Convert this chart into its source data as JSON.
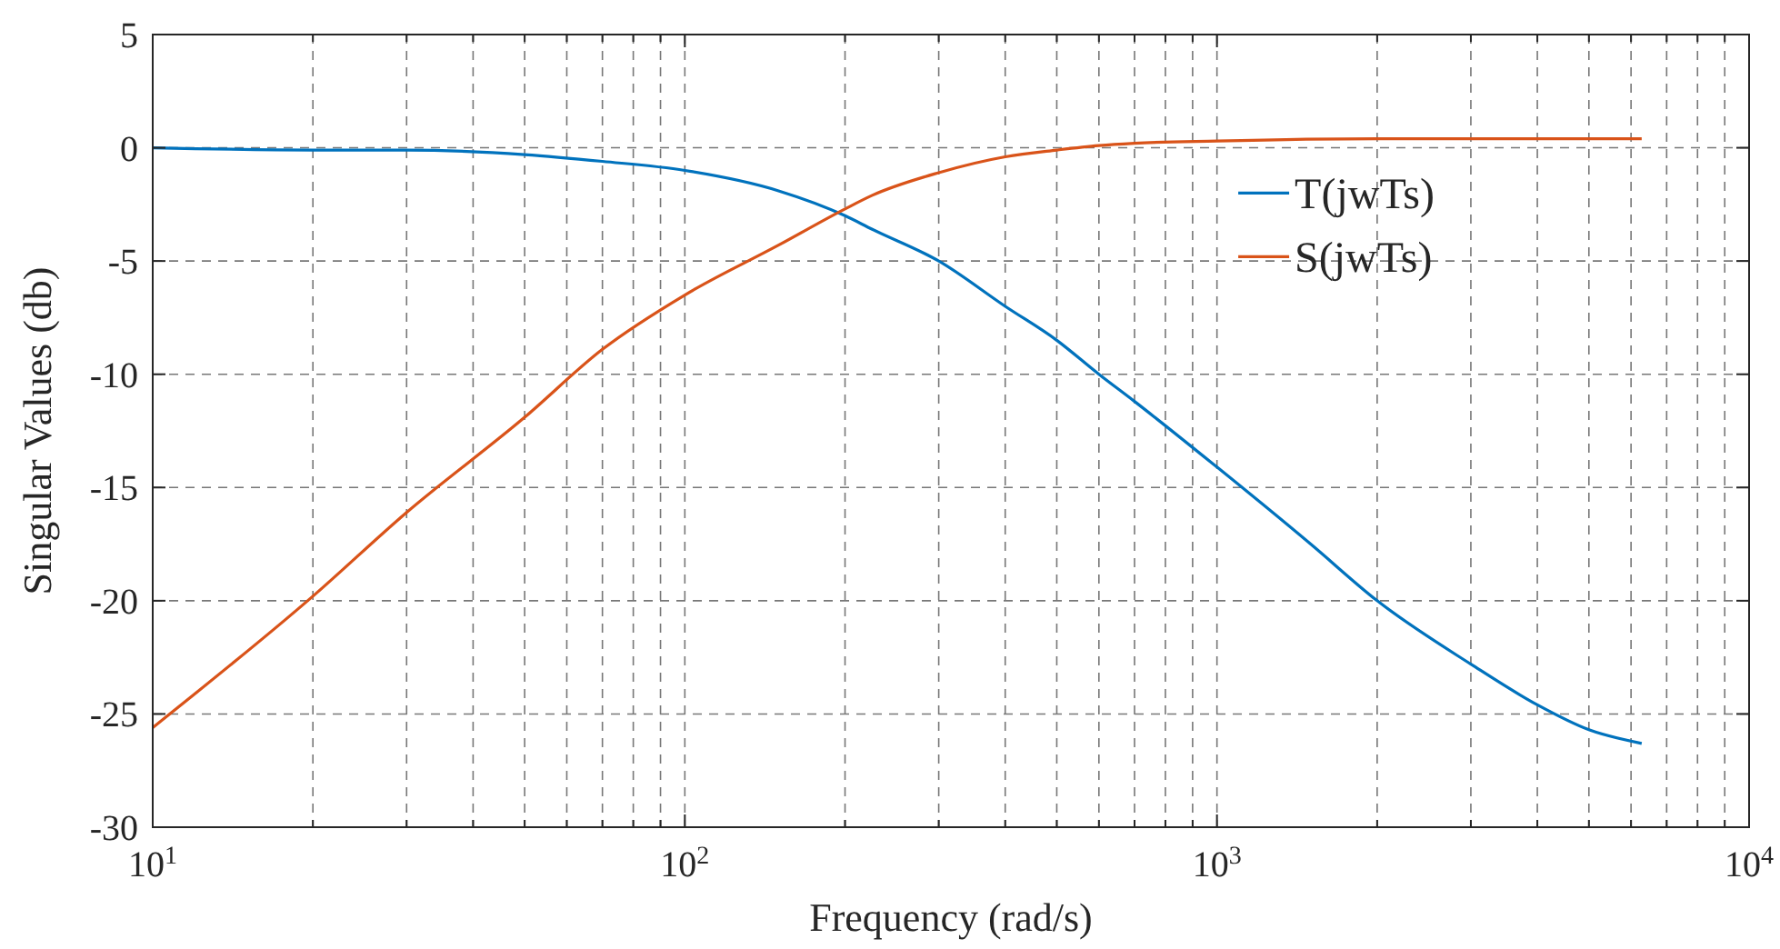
{
  "chart_data": {
    "type": "line",
    "xlabel": "Frequency (rad/s)",
    "ylabel": "Singular Values (db)",
    "log": "x",
    "grid": true,
    "legend": "top right",
    "line_style": "solid",
    "marker": "none",
    "xlim": [
      10,
      10000
    ],
    "ylim": [
      -30,
      5
    ],
    "xticks": [
      {
        "value": 10,
        "label": "10$^{1}$"
      },
      {
        "value": 20,
        "label": null
      },
      {
        "value": 30,
        "label": null
      },
      {
        "value": 40,
        "label": null
      },
      {
        "value": 50,
        "label": null
      },
      {
        "value": 60,
        "label": null
      },
      {
        "value": 70,
        "label": null
      },
      {
        "value": 80,
        "label": null
      },
      {
        "value": 90,
        "label": null
      },
      {
        "value": 100,
        "label": "10$^{2}$"
      },
      {
        "value": 200,
        "label": null
      },
      {
        "value": 300,
        "label": null
      },
      {
        "value": 400,
        "label": null
      },
      {
        "value": 500,
        "label": null
      },
      {
        "value": 600,
        "label": null
      },
      {
        "value": 700,
        "label": null
      },
      {
        "value": 800,
        "label": null
      },
      {
        "value": 900,
        "label": null
      },
      {
        "value": 1000,
        "label": "10$^{3}$"
      },
      {
        "value": 2000,
        "label": null
      },
      {
        "value": 3000,
        "label": null
      },
      {
        "value": 4000,
        "label": null
      },
      {
        "value": 5000,
        "label": null
      },
      {
        "value": 6000,
        "label": null
      },
      {
        "value": 7000,
        "label": null
      },
      {
        "value": 8000,
        "label": null
      },
      {
        "value": 9000,
        "label": null
      },
      {
        "value": 10000,
        "label": "10$^{4}$"
      }
    ],
    "yticks": [
      5,
      0,
      -5,
      -10,
      -15,
      -20,
      -25,
      -30
    ],
    "series": [
      {
        "name": "T(jwTs)",
        "color": "#0072bd",
        "x": [
          10,
          20,
          30,
          50,
          70,
          100,
          150,
          200,
          225,
          300,
          400,
          500,
          600,
          700,
          1000,
          1500,
          2000,
          3000,
          4000,
          5000,
          6283
        ],
        "values": [
          0,
          -0.1,
          -0.1,
          -0.3,
          -0.6,
          -1.0,
          -1.9,
          -3.0,
          -3.6,
          -5.0,
          -7.0,
          -8.5,
          -10,
          -11.2,
          -14.1,
          -17.5,
          -20,
          -22.8,
          -24.6,
          -25.7,
          -26.3
        ]
      },
      {
        "name": "S(jwTs)",
        "color": "#d95319",
        "x": [
          10,
          20,
          30,
          50,
          70,
          100,
          150,
          200,
          225,
          300,
          400,
          500,
          600,
          700,
          1000,
          2000,
          3000,
          6283
        ],
        "values": [
          -25.6,
          -19.8,
          -16.1,
          -11.9,
          -8.9,
          -6.5,
          -4.3,
          -2.7,
          -2.1,
          -1.1,
          -0.4,
          -0.1,
          0.1,
          0.2,
          0.3,
          0.4,
          0.4,
          0.4
        ]
      }
    ]
  }
}
